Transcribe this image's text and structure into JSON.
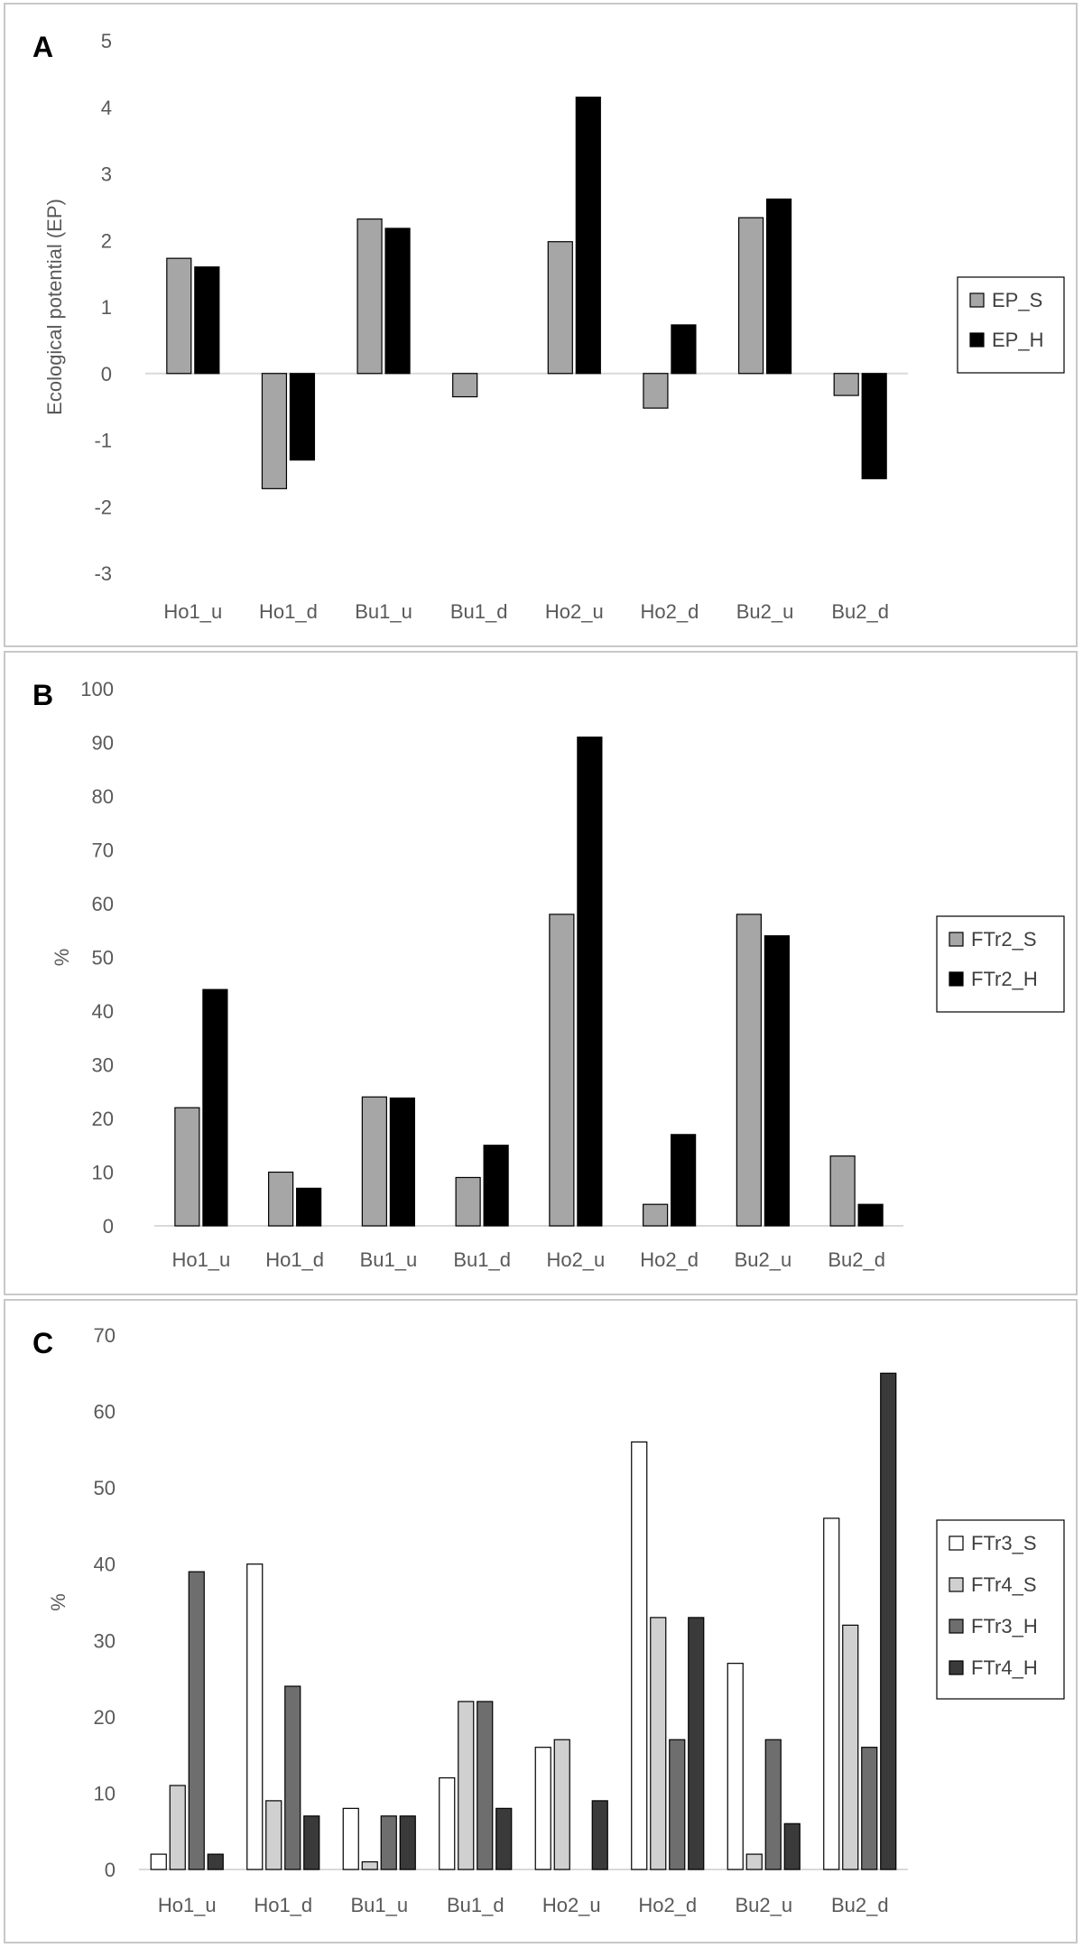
{
  "chart_data": [
    {
      "panel_label": "A",
      "type": "bar",
      "categories": [
        "Ho1_u",
        "Ho1_d",
        "Bu1_u",
        "Bu1_d",
        "Ho2_u",
        "Ho2_d",
        "Bu2_u",
        "Bu2_d"
      ],
      "series": [
        {
          "name": "EP_S",
          "color": "#a6a6a6",
          "values": [
            1.73,
            -1.73,
            2.32,
            -0.35,
            1.98,
            -0.52,
            2.34,
            -0.33
          ]
        },
        {
          "name": "EP_H",
          "color": "#000000",
          "values": [
            1.6,
            -1.3,
            2.18,
            0,
            4.15,
            0.73,
            2.62,
            -1.58
          ]
        }
      ],
      "ylabel": "Ecological potential (EP)",
      "ylim": [
        -3,
        5
      ],
      "yticks": [
        "5",
        "4",
        "3",
        "2",
        "1",
        "0",
        "-1",
        "-2",
        "-3"
      ],
      "ytick_values": [
        5,
        4,
        3,
        2,
        1,
        0,
        -1,
        -2,
        -3
      ],
      "legend_position": "right"
    },
    {
      "panel_label": "B",
      "type": "bar",
      "categories": [
        "Ho1_u",
        "Ho1_d",
        "Bu1_u",
        "Bu1_d",
        "Ho2_u",
        "Ho2_d",
        "Bu2_u",
        "Bu2_d"
      ],
      "series": [
        {
          "name": "FTr2_S",
          "color": "#a6a6a6",
          "values": [
            22,
            10,
            24,
            9,
            58,
            4,
            58,
            13
          ]
        },
        {
          "name": "FTr2_H",
          "color": "#000000",
          "values": [
            44,
            7,
            23.8,
            15,
            91,
            17,
            54,
            4
          ]
        }
      ],
      "ylabel": "%",
      "ylim": [
        0,
        100
      ],
      "yticks": [
        "100",
        "90",
        "80",
        "70",
        "60",
        "50",
        "40",
        "30",
        "20",
        "10",
        "0"
      ],
      "ytick_values": [
        100,
        90,
        80,
        70,
        60,
        50,
        40,
        30,
        20,
        10,
        0
      ],
      "legend_position": "right"
    },
    {
      "panel_label": "C",
      "type": "bar",
      "categories": [
        "Ho1_u",
        "Ho1_d",
        "Bu1_u",
        "Bu1_d",
        "Ho2_u",
        "Ho2_d",
        "Bu2_u",
        "Bu2_d"
      ],
      "series": [
        {
          "name": "FTr3_S",
          "color": "#ffffff",
          "values": [
            2,
            40,
            8,
            12,
            16,
            56,
            27,
            46
          ]
        },
        {
          "name": "FTr4_S",
          "color": "#d0d0d0",
          "values": [
            11,
            9,
            1,
            22,
            17,
            33,
            2,
            32
          ]
        },
        {
          "name": "FTr3_H",
          "color": "#6e6e6e",
          "values": [
            39,
            24,
            7,
            22,
            0,
            17,
            17,
            16
          ]
        },
        {
          "name": "FTr4_H",
          "color": "#3a3a3a",
          "values": [
            2,
            7,
            7,
            8,
            9,
            33,
            6,
            65
          ]
        }
      ],
      "ylabel": "%",
      "ylim": [
        0,
        70
      ],
      "yticks": [
        "70",
        "60",
        "50",
        "40",
        "30",
        "20",
        "10",
        "0"
      ],
      "ytick_values": [
        70,
        60,
        50,
        40,
        30,
        20,
        10,
        0
      ],
      "legend_position": "right"
    }
  ]
}
